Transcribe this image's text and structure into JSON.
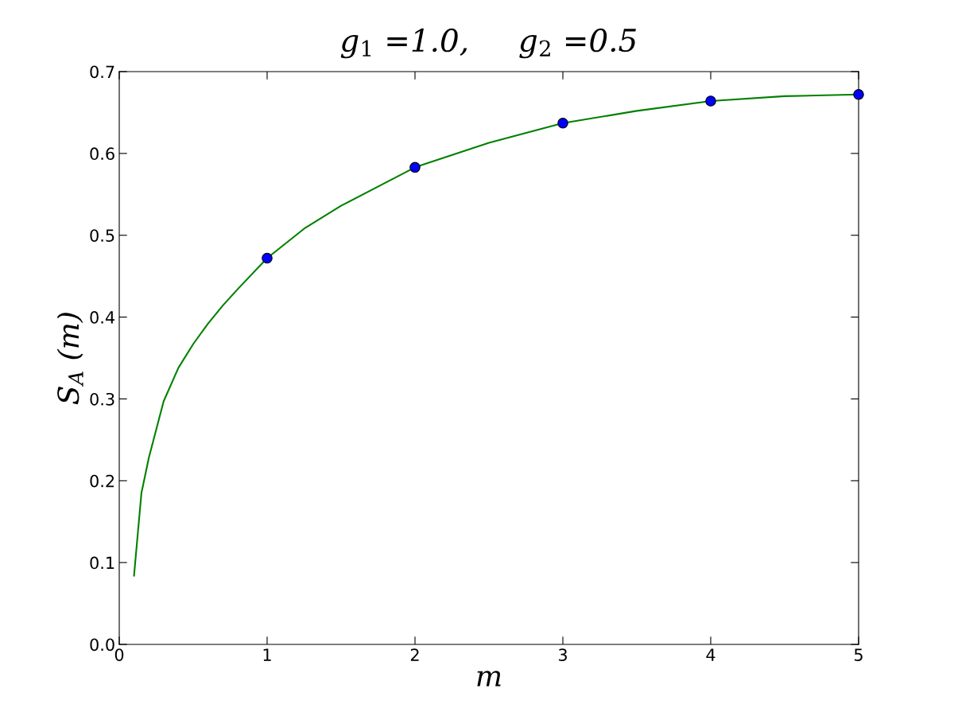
{
  "chart_data": {
    "type": "line",
    "title": "g$_{1}$ =1.0,     g$_{2}$ =0.5",
    "xlabel": "m",
    "ylabel": "S$_{A}$ (m)",
    "xlim": [
      0,
      5
    ],
    "ylim": [
      0.0,
      0.7
    ],
    "xticks": [
      0,
      1,
      2,
      3,
      4,
      5
    ],
    "yticks": [
      {
        "value": 0,
        "label": "0.0"
      },
      0.1,
      0.2,
      0.3,
      0.4,
      0.5,
      0.6,
      0.7
    ],
    "grid": false,
    "series": [
      {
        "color": "#008000",
        "marker": "none",
        "x": [
          0.1,
          0.15,
          0.2,
          0.3,
          0.4,
          0.5,
          0.6,
          0.7,
          0.8,
          1.0,
          1.25,
          1.5,
          2.0,
          2.5,
          3.0,
          3.5,
          4.0,
          4.5,
          5.0
        ],
        "values": [
          0.084,
          0.185,
          0.228,
          0.297,
          0.338,
          0.367,
          0.392,
          0.414,
          0.434,
          0.472,
          0.508,
          0.536,
          0.583,
          0.613,
          0.637,
          0.652,
          0.664,
          0.67,
          0.672
        ]
      },
      {
        "type": "scatter",
        "color": "#0000ff",
        "marker": "circle",
        "x": [
          1,
          2,
          3,
          4,
          5
        ],
        "values": [
          0.472,
          0.583,
          0.637,
          0.664,
          0.672
        ]
      }
    ]
  }
}
